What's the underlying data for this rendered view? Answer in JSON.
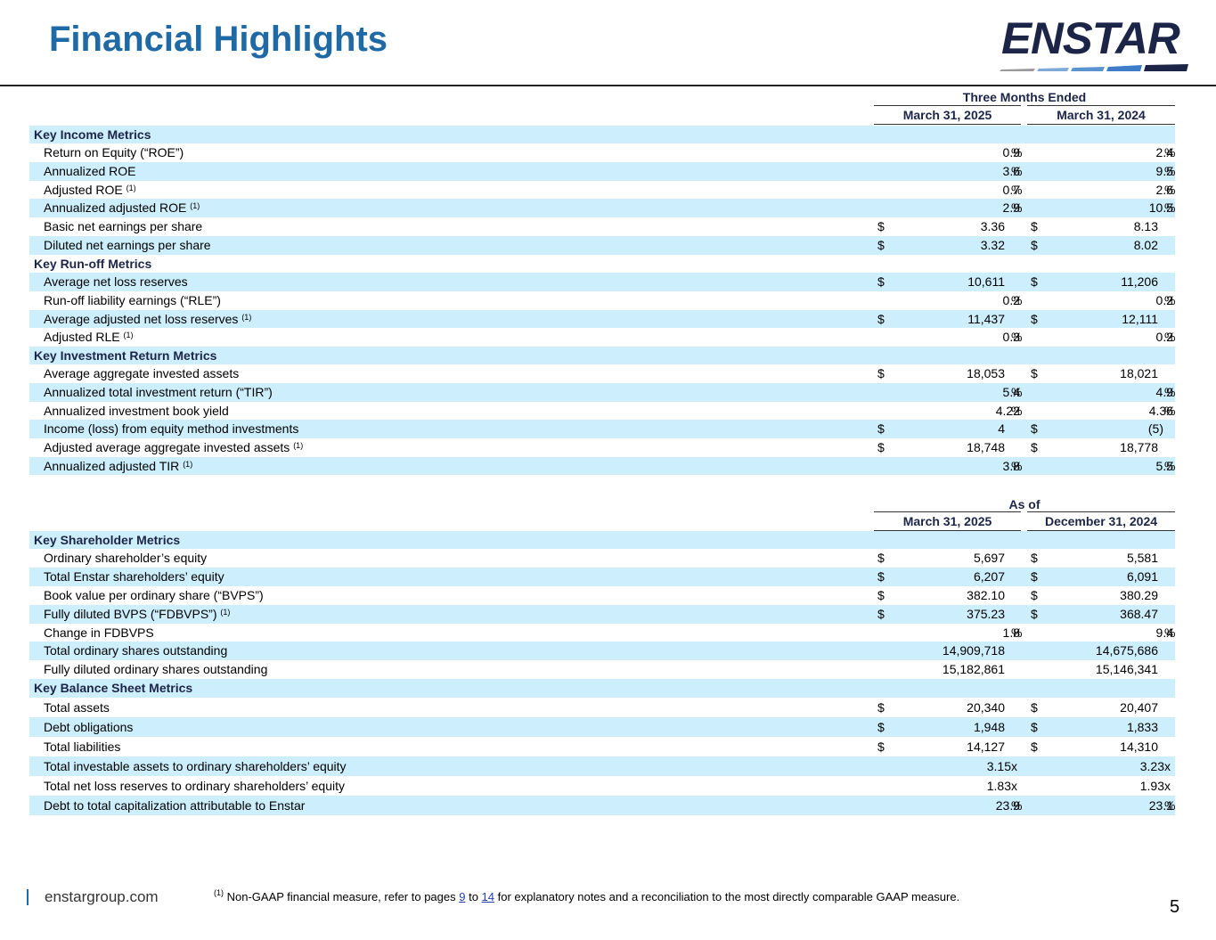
{
  "title": "Financial Highlights",
  "logo": {
    "text": "ENSTAR"
  },
  "table1": {
    "group_header": "Three Months Ended",
    "col1": "March 31, 2025",
    "col2": "March 31, 2024",
    "rows": [
      {
        "label": "Key Income Metrics",
        "section": true
      },
      {
        "label": "Return on Equity (“ROE”)",
        "a": "0.9",
        "b": "2.4",
        "unit": "%"
      },
      {
        "label": "Annualized ROE",
        "a": "3.6",
        "b": "9.5",
        "unit": "%"
      },
      {
        "label": "Adjusted ROE",
        "sup": "(1)",
        "a": "0.7",
        "b": "2.6",
        "unit": "%"
      },
      {
        "label": "Annualized adjusted ROE",
        "sup": "(1)",
        "a": "2.9",
        "b": "10.5",
        "unit": "%"
      },
      {
        "label": "Basic net earnings per share",
        "cur": "$",
        "a": "3.36",
        "b": "8.13"
      },
      {
        "label": "Diluted net earnings per share",
        "cur": "$",
        "a": "3.32",
        "b": "8.02"
      },
      {
        "label": "Key Run-off Metrics",
        "section": true
      },
      {
        "label": "Average net loss reserves",
        "cur": "$",
        "a": "10,611",
        "b": "11,206"
      },
      {
        "label": "Run-off liability earnings (“RLE”)",
        "a": "0.2",
        "b": "0.2",
        "unit": "%"
      },
      {
        "label": "Average adjusted net loss reserves",
        "sup": "(1)",
        "cur": "$",
        "a": "11,437",
        "b": "12,111"
      },
      {
        "label": "Adjusted RLE",
        "sup": "(1)",
        "a": "0.3",
        "b": "0.2",
        "unit": "%"
      },
      {
        "label": "Key Investment Return Metrics",
        "section": true
      },
      {
        "label": "Average aggregate invested assets",
        "cur": "$",
        "a": "18,053",
        "b": "18,021"
      },
      {
        "label": "Annualized total investment return (“TIR”)",
        "a": "5.4",
        "b": "4.9",
        "unit": "%"
      },
      {
        "label": "Annualized investment book yield",
        "a": "4.22",
        "b": "4.36",
        "unit": "%"
      },
      {
        "label": "Income (loss) from equity method investments",
        "cur": "$",
        "a": "4",
        "b": "(5)",
        "paren": true
      },
      {
        "label": "Adjusted average aggregate invested assets",
        "sup": "(1)",
        "cur": "$",
        "a": "18,748",
        "b": "18,778"
      },
      {
        "label": "Annualized adjusted TIR",
        "sup": "(1)",
        "a": "3.8",
        "b": "5.5",
        "unit": "%"
      }
    ]
  },
  "table2": {
    "group_header": "As of",
    "col1": "March 31, 2025",
    "col2": "December 31, 2024",
    "rows": [
      {
        "label": "Key Shareholder Metrics",
        "section": true
      },
      {
        "label": "Ordinary shareholder’s equity",
        "cur": "$",
        "a": "5,697",
        "b": "5,581"
      },
      {
        "label": "Total Enstar shareholders’ equity",
        "cur": "$",
        "a": "6,207",
        "b": "6,091"
      },
      {
        "label": "Book value per ordinary share (“BVPS”)",
        "cur": "$",
        "a": "382.10",
        "b": "380.29"
      },
      {
        "label": "Fully diluted BVPS (“FDBVPS”)",
        "sup": "(1)",
        "cur": "$",
        "a": "375.23",
        "b": "368.47"
      },
      {
        "label": "Change in FDBVPS",
        "a": "1.8",
        "b": "9.4",
        "unit": "%"
      },
      {
        "label": "Total ordinary shares outstanding",
        "a": "14,909,718",
        "b": "14,675,686"
      },
      {
        "label": "Fully diluted ordinary shares outstanding",
        "a": "15,182,861",
        "b": "15,146,341"
      },
      {
        "label": "Key Balance Sheet Metrics",
        "section": true
      },
      {
        "label": "Total assets",
        "cur": "$",
        "a": "20,340",
        "b": "20,407"
      },
      {
        "label": "Debt obligations",
        "cur": "$",
        "a": "1,948",
        "b": "1,833"
      },
      {
        "label": "Total liabilities",
        "cur": "$",
        "a": "14,127",
        "b": "14,310"
      },
      {
        "label": "Total investable assets to ordinary shareholders’ equity",
        "a": "3.15x",
        "b": "3.23x",
        "mult": true
      },
      {
        "label": "Total net loss reserves to ordinary shareholders’ equity",
        "a": "1.83x",
        "b": "1.93x",
        "mult": true
      },
      {
        "label": "Debt to total capitalization attributable to Enstar",
        "a": "23.9",
        "b": "23.1",
        "unit": "%"
      }
    ]
  },
  "footer": {
    "site": "enstargroup.com",
    "note_sup": "(1)",
    "note_pre": " Non-GAAP financial measure, refer to pages ",
    "page_a": "9",
    "note_mid": " to ",
    "page_b": "14",
    "note_post": " for explanatory notes and a reconciliation to the most directly comparable GAAP measure.",
    "page_number": "5"
  }
}
